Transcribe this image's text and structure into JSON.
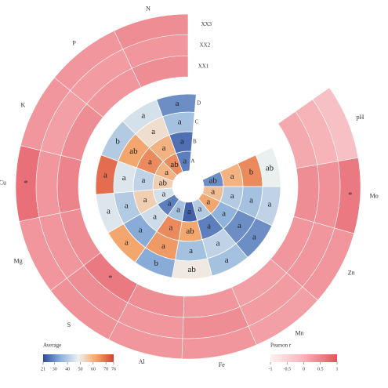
{
  "chart_data": {
    "type": "circular-heatmap",
    "outer": {
      "variables": [
        "pH",
        "Mo",
        "Zn",
        "Mn",
        "Fe",
        "Al",
        "S",
        "Mg",
        "Cu",
        "K",
        "P",
        "N"
      ],
      "rings": [
        "XX1",
        "XX2",
        "XX3"
      ],
      "values": [
        [
          0.1,
          0.4,
          0.3,
          0.2,
          0.3,
          0.4,
          0.6,
          0.4,
          0.5,
          0.4,
          0.3,
          0.4
        ],
        [
          0.0,
          0.35,
          0.3,
          0.25,
          0.4,
          0.3,
          0.4,
          0.3,
          0.3,
          0.2,
          0.25,
          0.3
        ],
        [
          -0.2,
          0.6,
          0.3,
          0.2,
          0.3,
          0.3,
          0.35,
          0.3,
          0.7,
          0.3,
          0.3,
          0.4
        ]
      ],
      "marks": [
        [
          null,
          null,
          null,
          null,
          null,
          null,
          "*",
          null,
          null,
          null,
          null,
          null
        ],
        [
          null,
          null,
          null,
          null,
          null,
          null,
          null,
          null,
          null,
          null,
          null,
          null
        ],
        [
          null,
          "*",
          null,
          null,
          null,
          null,
          null,
          null,
          "*",
          null,
          null,
          null
        ]
      ],
      "clim": [
        -1,
        1
      ],
      "colors": [
        "#fdf2f2",
        "#f6b3b8",
        "#e4535d"
      ],
      "colorbar": {
        "title": "Pearson r",
        "ticks": [
          -1,
          -0.5,
          0,
          0.5,
          1
        ]
      }
    },
    "inner": {
      "rings": [
        "A",
        "B",
        "C",
        "D"
      ],
      "values": [
        [
          30,
          58,
          62,
          40,
          24,
          38,
          28,
          45,
          55,
          60,
          66,
          28
        ],
        [
          60,
          40,
          35,
          28,
          62,
          66,
          44,
          55,
          42,
          66,
          60,
          26
        ],
        [
          66,
          38,
          30,
          42,
          38,
          64,
          34,
          40,
          46,
          62,
          52,
          38
        ],
        [
          48,
          42,
          30,
          38,
          50,
          34,
          62,
          46,
          70,
          40,
          45,
          30
        ]
      ],
      "labels": [
        [
          "ab",
          "a",
          "a",
          "a",
          "a",
          "a",
          "a",
          "a",
          "ab",
          "a",
          "ab",
          "a"
        ],
        [
          "a",
          "a",
          "a",
          "a",
          "ab",
          "a",
          "a",
          "a",
          "a",
          "a",
          "a",
          "a"
        ],
        [
          "b",
          "a",
          "a",
          "a",
          "a",
          "a",
          "a",
          "a",
          "a",
          "ab",
          "a",
          "a"
        ],
        [
          "ab",
          "a",
          "a",
          "a",
          "ab",
          "b",
          "a",
          "a",
          "a",
          "b",
          "a",
          "a"
        ]
      ],
      "clim": [
        21,
        76
      ],
      "colors": [
        "#2e4a9e",
        "#8db2da",
        "#eef1f0",
        "#f3a66c",
        "#d64036"
      ],
      "colorbar": {
        "title": "Average",
        "ticks": [
          21,
          30,
          40,
          50,
          60,
          70,
          76
        ]
      }
    }
  }
}
